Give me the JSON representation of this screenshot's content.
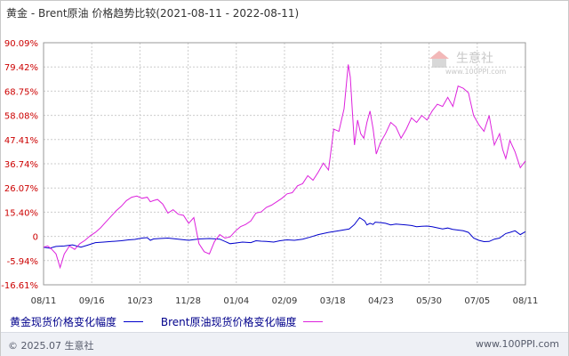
{
  "header": {
    "title": "黄金 - Brent原油 价格趋势比较(2021-08-11 - 2022-08-11)"
  },
  "watermark": {
    "name": "生意社",
    "url": "www.100PPI.com"
  },
  "footer": {
    "copyright": "© 2025.07 生意社",
    "url": "www.100PPI.com",
    "background": "#eef0f5"
  },
  "colors": {
    "gold": "#0000cc",
    "brent": "#dd22dd",
    "grid": "#cccccc",
    "ytick": "#cc0000"
  },
  "chart_data": {
    "type": "line",
    "title": "黄金 - Brent原油 价格趋势比较(2021-08-11 - 2022-08-11)",
    "x_tick_labels": [
      "08/11",
      "09/16",
      "10/23",
      "11/28",
      "01/04",
      "02/09",
      "03/18",
      "04/23",
      "05/30",
      "07/05",
      "08/11"
    ],
    "y_tick_labels": [
      "90.09%",
      "79.42%",
      "68.75%",
      "58.08%",
      "47.41%",
      "36.74%",
      "26.07%",
      "15.40%",
      "0",
      "-5.94%",
      "-16.61%"
    ],
    "ylim": [
      -16.61,
      90.09
    ],
    "grid": true,
    "legend_position": "bottom",
    "series": [
      {
        "name": "黄金现货价格变化幅度",
        "color": "#0000cc",
        "x": [
          0,
          6,
          12,
          20,
          28,
          36,
          42,
          50,
          58,
          66,
          75,
          82,
          88,
          95,
          100,
          103,
          106,
          112,
          120,
          130,
          140,
          150,
          160,
          170,
          180,
          185,
          192,
          200,
          205,
          210,
          215,
          222,
          228,
          235,
          242,
          250,
          258,
          265,
          275,
          285,
          295,
          300,
          305,
          310,
          312,
          315,
          318,
          320,
          325,
          330,
          335,
          340,
          345,
          350,
          355,
          360,
          365,
          370,
          375,
          380,
          385,
          390,
          395,
          400,
          405,
          410,
          415,
          420,
          425,
          430,
          435,
          440,
          443,
          446,
          450,
          455,
          460,
          465
        ],
        "y": [
          0.0,
          -0.5,
          0.3,
          0.5,
          1.0,
          0.0,
          0.8,
          2.0,
          2.2,
          2.5,
          2.8,
          3.2,
          3.4,
          4.0,
          4.2,
          3.0,
          3.6,
          3.8,
          4.0,
          3.5,
          3.0,
          3.6,
          3.8,
          3.5,
          1.5,
          1.8,
          2.2,
          2.0,
          2.8,
          2.6,
          2.5,
          2.2,
          2.8,
          3.2,
          3.0,
          3.5,
          4.5,
          5.5,
          6.5,
          7.2,
          8.0,
          10.0,
          13.0,
          11.5,
          9.8,
          10.5,
          10.0,
          11.0,
          10.8,
          10.5,
          9.8,
          10.2,
          10.0,
          9.8,
          9.5,
          9.0,
          9.2,
          9.3,
          9.0,
          8.5,
          8.0,
          8.4,
          7.8,
          7.5,
          7.2,
          6.5,
          4.0,
          3.0,
          2.4,
          2.5,
          3.5,
          4.0,
          5.0,
          6.0,
          6.5,
          7.2,
          5.5,
          6.8
        ]
      },
      {
        "name": "Brent原油现货价格变化幅度",
        "color": "#dd22dd",
        "x": [
          0,
          4,
          8,
          12,
          16,
          20,
          25,
          30,
          35,
          40,
          45,
          50,
          55,
          60,
          65,
          70,
          75,
          80,
          85,
          90,
          95,
          100,
          103,
          106,
          110,
          115,
          120,
          125,
          130,
          135,
          140,
          145,
          150,
          155,
          160,
          165,
          170,
          175,
          180,
          185,
          190,
          195,
          200,
          205,
          210,
          215,
          220,
          225,
          230,
          235,
          240,
          245,
          250,
          255,
          260,
          265,
          270,
          275,
          280,
          285,
          290,
          294,
          296,
          298,
          300,
          303,
          306,
          309,
          312,
          315,
          318,
          321,
          325,
          330,
          335,
          340,
          345,
          350,
          355,
          360,
          365,
          370,
          375,
          380,
          385,
          390,
          395,
          400,
          405,
          410,
          415,
          420,
          425,
          430,
          435,
          440,
          443,
          446,
          450,
          455,
          460,
          465
        ],
        "y": [
          0.0,
          0.5,
          -1.0,
          -3.0,
          -9.0,
          -3.0,
          0.5,
          -1.0,
          1.5,
          3.0,
          5.0,
          6.5,
          8.5,
          11.0,
          13.5,
          16.0,
          18.0,
          20.5,
          22.0,
          22.5,
          21.5,
          22.0,
          20.0,
          20.5,
          21.0,
          19.0,
          15.0,
          16.5,
          14.5,
          14.0,
          10.5,
          13.0,
          1.5,
          -2.0,
          -3.0,
          2.5,
          5.5,
          4.0,
          4.5,
          7.0,
          9.0,
          10.0,
          11.5,
          15.0,
          15.5,
          17.5,
          18.5,
          20.0,
          21.5,
          23.5,
          24.0,
          27.0,
          28.0,
          31.5,
          29.5,
          33.0,
          37.0,
          34.0,
          52.0,
          51.0,
          61.0,
          80.5,
          75.0,
          60.0,
          45.0,
          56.0,
          50.0,
          48.0,
          55.0,
          60.0,
          52.0,
          41.0,
          46.0,
          50.0,
          55.0,
          53.0,
          48.0,
          52.0,
          57.0,
          55.0,
          58.0,
          56.0,
          60.0,
          63.0,
          62.0,
          66.0,
          62.0,
          71.0,
          70.0,
          68.0,
          58.0,
          54.0,
          51.0,
          58.0,
          45.0,
          50.0,
          43.0,
          39.0,
          47.0,
          42.0,
          35.0,
          38.0
        ]
      }
    ]
  },
  "legend": {
    "items": [
      {
        "label": "黄金现货价格变化幅度",
        "color": "#0000cc"
      },
      {
        "label": "Brent原油现货价格变化幅度",
        "color": "#dd22dd"
      }
    ]
  }
}
